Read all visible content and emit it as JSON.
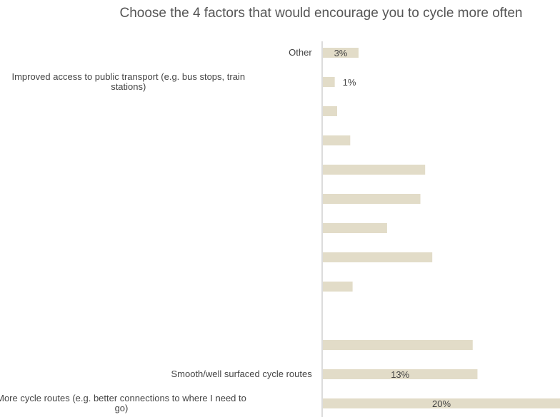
{
  "chart_data": {
    "type": "bar",
    "orientation": "horizontal",
    "title": "Choose the 4 factors that would encourage you to cycle more often",
    "bar_color": "#e2dcc8",
    "axis_color": "#b9b9b9",
    "xlim": [
      0,
      20
    ],
    "categories": [
      "Other",
      "Improved access to public transport (e.g. bus stops, train stations)",
      "",
      "",
      "",
      "",
      "",
      "",
      "",
      "",
      "",
      "Smooth/well surfaced cycle routes",
      "More cycle routes (e.g. better connections to where I need to go)"
    ],
    "category_lines": [
      [
        "Other"
      ],
      [
        "Improved access to public transport (e.g. bus stops, train",
        "stations)"
      ],
      [],
      [],
      [],
      [],
      [],
      [],
      [],
      [],
      [],
      [
        "Smooth/well surfaced cycle routes"
      ],
      [
        "More cycle routes (e.g. better connections to where I need to",
        "go)"
      ]
    ],
    "values": [
      3,
      1,
      1.2,
      2.3,
      8.6,
      8.2,
      5.4,
      9.2,
      2.5,
      0,
      12.6,
      13,
      20
    ],
    "value_labels": [
      "3%",
      "1%",
      "",
      "",
      "",
      "",
      "",
      "",
      "",
      "",
      "",
      "13%",
      "20%"
    ]
  }
}
